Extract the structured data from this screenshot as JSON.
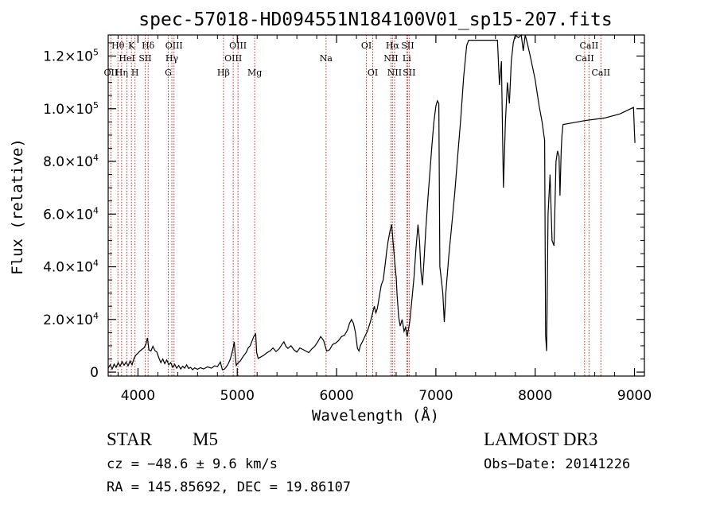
{
  "chart_data": {
    "type": "line",
    "title": "spec-57018-HD094551N184100V01_sp15-207.fits",
    "xlabel": "Wavelength (Å)",
    "ylabel": "Flux (relative)",
    "xlim": [
      3700,
      9100
    ],
    "ylim": [
      -1500,
      128000
    ],
    "xticks": [
      {
        "value": 4000,
        "label": "4000"
      },
      {
        "value": 5000,
        "label": "5000"
      },
      {
        "value": 6000,
        "label": "6000"
      },
      {
        "value": 7000,
        "label": "7000"
      },
      {
        "value": 8000,
        "label": "8000"
      },
      {
        "value": 9000,
        "label": "9000"
      }
    ],
    "yticks": [
      {
        "value": 0,
        "mant": "0",
        "exp": ""
      },
      {
        "value": 20000,
        "mant": "2.0×10",
        "exp": "4"
      },
      {
        "value": 40000,
        "mant": "4.0×10",
        "exp": "4"
      },
      {
        "value": 60000,
        "mant": "6.0×10",
        "exp": "4"
      },
      {
        "value": 80000,
        "mant": "8.0×10",
        "exp": "4"
      },
      {
        "value": 100000,
        "mant": "1.0×10",
        "exp": "5"
      },
      {
        "value": 120000,
        "mant": "1.2×10",
        "exp": "5"
      }
    ],
    "lines": [
      {
        "x": 3727,
        "label": "OII",
        "row": 2
      },
      {
        "x": 3798,
        "label": "Hθ",
        "row": 0
      },
      {
        "x": 3835,
        "label": "Hη",
        "row": 2
      },
      {
        "x": 3889,
        "label": "HeI",
        "row": 1
      },
      {
        "x": 3934,
        "label": "K",
        "row": 0
      },
      {
        "x": 3970,
        "label": "H",
        "row": 2
      },
      {
        "x": 4072,
        "label": "SII",
        "row": 1
      },
      {
        "x": 4102,
        "label": "Hδ",
        "row": 0
      },
      {
        "x": 4305,
        "label": "G",
        "row": 2
      },
      {
        "x": 4341,
        "label": "Hγ",
        "row": 1
      },
      {
        "x": 4363,
        "label": "OIII",
        "row": 0
      },
      {
        "x": 4861,
        "label": "Hβ",
        "row": 2
      },
      {
        "x": 4959,
        "label": "OIII",
        "row": 1
      },
      {
        "x": 5007,
        "label": "OIII",
        "row": 0
      },
      {
        "x": 5175,
        "label": "Mg",
        "row": 2
      },
      {
        "x": 5894,
        "label": "Na",
        "row": 1
      },
      {
        "x": 6300,
        "label": "OI",
        "row": 0
      },
      {
        "x": 6364,
        "label": "OI",
        "row": 2
      },
      {
        "x": 6548,
        "label": "NII",
        "row": 1
      },
      {
        "x": 6563,
        "label": "Hα",
        "row": 0
      },
      {
        "x": 6584,
        "label": "NII",
        "row": 2
      },
      {
        "x": 6707,
        "label": "Li",
        "row": 1
      },
      {
        "x": 6716,
        "label": "SII",
        "row": 0
      },
      {
        "x": 6731,
        "label": "SII",
        "row": 2
      },
      {
        "x": 8498,
        "label": "CaII",
        "row": 1
      },
      {
        "x": 8542,
        "label": "CaII",
        "row": 0
      },
      {
        "x": 8662,
        "label": "CaII",
        "row": 2
      }
    ],
    "series": [
      {
        "name": "flux",
        "points": [
          [
            3700,
            1500
          ],
          [
            3720,
            2800
          ],
          [
            3740,
            1200
          ],
          [
            3760,
            3000
          ],
          [
            3780,
            1800
          ],
          [
            3800,
            3600
          ],
          [
            3820,
            2200
          ],
          [
            3840,
            4000
          ],
          [
            3860,
            2600
          ],
          [
            3880,
            3800
          ],
          [
            3900,
            2400
          ],
          [
            3920,
            4200
          ],
          [
            3940,
            2800
          ],
          [
            3960,
            5200
          ],
          [
            3980,
            6500
          ],
          [
            4000,
            7200
          ],
          [
            4020,
            8000
          ],
          [
            4040,
            8600
          ],
          [
            4060,
            9200
          ],
          [
            4080,
            10500
          ],
          [
            4095,
            13000
          ],
          [
            4110,
            8500
          ],
          [
            4130,
            8000
          ],
          [
            4150,
            9800
          ],
          [
            4170,
            8200
          ],
          [
            4190,
            7600
          ],
          [
            4210,
            5400
          ],
          [
            4230,
            3600
          ],
          [
            4250,
            5000
          ],
          [
            4270,
            3200
          ],
          [
            4290,
            4600
          ],
          [
            4310,
            2800
          ],
          [
            4330,
            3600
          ],
          [
            4350,
            1800
          ],
          [
            4370,
            3000
          ],
          [
            4390,
            1500
          ],
          [
            4410,
            2500
          ],
          [
            4430,
            1200
          ],
          [
            4450,
            2200
          ],
          [
            4470,
            1500
          ],
          [
            4490,
            2800
          ],
          [
            4510,
            1400
          ],
          [
            4530,
            1800
          ],
          [
            4550,
            900
          ],
          [
            4570,
            1600
          ],
          [
            4600,
            1100
          ],
          [
            4630,
            1700
          ],
          [
            4660,
            1200
          ],
          [
            4700,
            2000
          ],
          [
            4740,
            1500
          ],
          [
            4770,
            2400
          ],
          [
            4800,
            2100
          ],
          [
            4830,
            3800
          ],
          [
            4850,
            900
          ],
          [
            4870,
            1100
          ],
          [
            4890,
            2000
          ],
          [
            4910,
            3200
          ],
          [
            4930,
            5000
          ],
          [
            4955,
            8500
          ],
          [
            4970,
            11500
          ],
          [
            4980,
            6000
          ],
          [
            4990,
            2500
          ],
          [
            5000,
            3200
          ],
          [
            5030,
            4200
          ],
          [
            5060,
            6000
          ],
          [
            5090,
            7500
          ],
          [
            5110,
            9200
          ],
          [
            5130,
            10000
          ],
          [
            5150,
            12000
          ],
          [
            5170,
            13800
          ],
          [
            5185,
            14500
          ],
          [
            5195,
            7500
          ],
          [
            5210,
            5200
          ],
          [
            5240,
            5800
          ],
          [
            5270,
            6500
          ],
          [
            5300,
            7400
          ],
          [
            5330,
            8000
          ],
          [
            5360,
            9200
          ],
          [
            5390,
            7800
          ],
          [
            5420,
            8800
          ],
          [
            5450,
            10500
          ],
          [
            5470,
            11500
          ],
          [
            5490,
            9800
          ],
          [
            5510,
            9000
          ],
          [
            5540,
            10000
          ],
          [
            5570,
            8500
          ],
          [
            5600,
            7600
          ],
          [
            5630,
            9200
          ],
          [
            5660,
            8600
          ],
          [
            5690,
            8000
          ],
          [
            5720,
            7400
          ],
          [
            5750,
            8800
          ],
          [
            5780,
            9800
          ],
          [
            5810,
            11500
          ],
          [
            5840,
            13500
          ],
          [
            5870,
            12000
          ],
          [
            5900,
            8000
          ],
          [
            5930,
            8500
          ],
          [
            5960,
            10500
          ],
          [
            5990,
            11000
          ],
          [
            6020,
            12000
          ],
          [
            6050,
            13500
          ],
          [
            6080,
            14000
          ],
          [
            6110,
            16000
          ],
          [
            6130,
            18500
          ],
          [
            6150,
            20000
          ],
          [
            6170,
            18500
          ],
          [
            6190,
            15000
          ],
          [
            6210,
            9000
          ],
          [
            6225,
            8000
          ],
          [
            6240,
            10000
          ],
          [
            6260,
            11500
          ],
          [
            6290,
            14000
          ],
          [
            6310,
            15500
          ],
          [
            6340,
            19000
          ],
          [
            6360,
            22000
          ],
          [
            6380,
            25000
          ],
          [
            6395,
            22500
          ],
          [
            6410,
            24000
          ],
          [
            6430,
            28500
          ],
          [
            6450,
            33000
          ],
          [
            6470,
            35000
          ],
          [
            6490,
            41000
          ],
          [
            6505,
            46000
          ],
          [
            6520,
            50000
          ],
          [
            6540,
            54000
          ],
          [
            6555,
            56000
          ],
          [
            6570,
            49000
          ],
          [
            6590,
            40000
          ],
          [
            6600,
            36000
          ],
          [
            6610,
            29000
          ],
          [
            6625,
            21000
          ],
          [
            6640,
            17500
          ],
          [
            6660,
            20000
          ],
          [
            6680,
            15500
          ],
          [
            6695,
            17000
          ],
          [
            6710,
            13500
          ],
          [
            6725,
            16500
          ],
          [
            6740,
            20000
          ],
          [
            6760,
            28000
          ],
          [
            6780,
            36000
          ],
          [
            6800,
            47000
          ],
          [
            6820,
            56000
          ],
          [
            6835,
            50000
          ],
          [
            6850,
            38000
          ],
          [
            6865,
            33000
          ],
          [
            6880,
            42000
          ],
          [
            6900,
            55000
          ],
          [
            6920,
            66000
          ],
          [
            6940,
            76000
          ],
          [
            6960,
            86000
          ],
          [
            6980,
            95000
          ],
          [
            7000,
            101000
          ],
          [
            7015,
            103000
          ],
          [
            7030,
            102000
          ],
          [
            7040,
            40000
          ],
          [
            7055,
            35000
          ],
          [
            7070,
            30000
          ],
          [
            7085,
            19000
          ],
          [
            7100,
            30000
          ],
          [
            7130,
            44000
          ],
          [
            7160,
            56000
          ],
          [
            7190,
            68000
          ],
          [
            7220,
            82000
          ],
          [
            7250,
            96000
          ],
          [
            7280,
            112000
          ],
          [
            7310,
            124000
          ],
          [
            7330,
            126000
          ],
          [
            7450,
            126000
          ],
          [
            7580,
            126000
          ],
          [
            7620,
            126000
          ],
          [
            7640,
            109000
          ],
          [
            7660,
            118000
          ],
          [
            7670,
            94000
          ],
          [
            7680,
            70000
          ],
          [
            7700,
            95000
          ],
          [
            7720,
            110000
          ],
          [
            7740,
            102000
          ],
          [
            7760,
            118000
          ],
          [
            7780,
            125000
          ],
          [
            7800,
            129000
          ],
          [
            7830,
            127000
          ],
          [
            7860,
            129000
          ],
          [
            7880,
            122000
          ],
          [
            7900,
            129000
          ],
          [
            7920,
            125000
          ],
          [
            7950,
            120000
          ],
          [
            8000,
            111000
          ],
          [
            8040,
            101000
          ],
          [
            8070,
            95000
          ],
          [
            8095,
            88000
          ],
          [
            8105,
            14000
          ],
          [
            8115,
            8000
          ],
          [
            8130,
            60000
          ],
          [
            8150,
            75000
          ],
          [
            8170,
            50000
          ],
          [
            8190,
            48000
          ],
          [
            8210,
            80000
          ],
          [
            8225,
            84000
          ],
          [
            8240,
            82000
          ],
          [
            8250,
            67000
          ],
          [
            8262,
            84000
          ],
          [
            8270,
            90000
          ],
          [
            8280,
            94000
          ],
          [
            8500,
            95500
          ],
          [
            8700,
            96500
          ],
          [
            8850,
            98000
          ],
          [
            8990,
            100500
          ],
          [
            9000,
            91000
          ],
          [
            9005,
            87000
          ]
        ]
      }
    ]
  },
  "info": {
    "object_class": "STAR",
    "subclass": "M5",
    "survey": "LAMOST DR3",
    "cz": "cz = −48.6 ± 9.6 km/s",
    "obs_date": "Obs−Date: 20141226",
    "radec": "RA = 145.85692, DEC =  19.86107"
  },
  "colors": {
    "line_marker": "#c62828",
    "spectrum": "#000000",
    "axes": "#000000"
  }
}
